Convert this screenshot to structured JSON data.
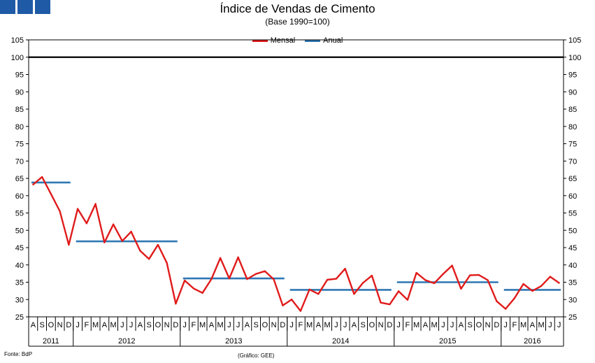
{
  "chart_data": {
    "type": "line",
    "title": "Índice de Vendas de Cimento",
    "subtitle": "(Base 1990=100)",
    "ylim": [
      25,
      105
    ],
    "yticks": [
      "25",
      "30",
      "35",
      "40",
      "45",
      "50",
      "55",
      "60",
      "65",
      "70",
      "75",
      "80",
      "85",
      "90",
      "95",
      "100",
      "105"
    ],
    "reference_line": 100,
    "months": [
      "A",
      "S",
      "O",
      "N",
      "D",
      "J",
      "F",
      "M",
      "A",
      "M",
      "J",
      "J",
      "A",
      "S",
      "O",
      "N",
      "D",
      "J",
      "F",
      "M",
      "A",
      "M",
      "J",
      "J",
      "A",
      "S",
      "O",
      "N",
      "D",
      "J",
      "F",
      "M",
      "A",
      "M",
      "J",
      "J",
      "A",
      "S",
      "O",
      "N",
      "D",
      "J",
      "F",
      "M",
      "A",
      "M",
      "J",
      "J",
      "A",
      "S",
      "O",
      "N",
      "D",
      "J",
      "F",
      "M",
      "A",
      "M",
      "J",
      "J"
    ],
    "years": [
      {
        "label": "2011",
        "start": 0,
        "count": 5
      },
      {
        "label": "2012",
        "start": 5,
        "count": 12
      },
      {
        "label": "2013",
        "start": 17,
        "count": 12
      },
      {
        "label": "2014",
        "start": 29,
        "count": 12
      },
      {
        "label": "2015",
        "start": 41,
        "count": 12
      },
      {
        "label": "2016",
        "start": 53,
        "count": 7
      }
    ],
    "series": [
      {
        "name": "Mensal",
        "color": "#e01b1b",
        "values": [
          63.2,
          65.4,
          60.5,
          55.5,
          45.8,
          56.2,
          52.0,
          57.6,
          46.5,
          51.7,
          46.9,
          49.6,
          44.1,
          41.7,
          45.8,
          40.6,
          28.8,
          35.5,
          33.2,
          31.9,
          35.9,
          42.0,
          36.1,
          42.2,
          35.9,
          37.4,
          38.2,
          35.8,
          28.3,
          30.0,
          26.7,
          32.9,
          31.6,
          35.7,
          36.0,
          38.9,
          31.6,
          34.8,
          36.9,
          29.1,
          28.6,
          32.4,
          29.9,
          37.7,
          35.6,
          34.7,
          37.4,
          39.8,
          33.1,
          37.0,
          37.1,
          35.6,
          29.5,
          27.3,
          30.4,
          34.5,
          32.5,
          33.9,
          36.6,
          34.8
        ]
      },
      {
        "name": "Anual",
        "color": "#2f78b4",
        "segments": [
          {
            "start": 0,
            "end": 4,
            "value": 63.8
          },
          {
            "start": 5,
            "end": 16,
            "value": 46.8
          },
          {
            "start": 17,
            "end": 28,
            "value": 36.1
          },
          {
            "start": 29,
            "end": 40,
            "value": 32.8
          },
          {
            "start": 41,
            "end": 52,
            "value": 35.0
          },
          {
            "start": 53,
            "end": 59,
            "value": 32.8
          }
        ]
      }
    ]
  },
  "legend": {
    "mensal": "Mensal",
    "anual": "Anual"
  },
  "footer": {
    "source": "Fonte: BdP",
    "credit": "(Gráfico: GEE)"
  },
  "colors": {
    "logo": "#1f5aa6",
    "mensal": "#e01b1b",
    "anual": "#2f78b4",
    "reference": "#000000"
  }
}
